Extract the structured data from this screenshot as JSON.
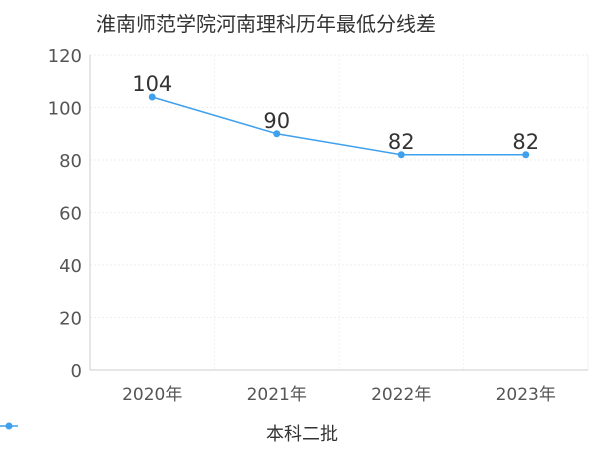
{
  "chart_data": {
    "type": "line",
    "title": "淮南师范学院河南理科历年最低分线差",
    "categories": [
      "2020年",
      "2021年",
      "2022年",
      "2023年"
    ],
    "series": [
      {
        "name": "本科二批",
        "values": [
          104,
          90,
          82,
          82
        ],
        "color": "#3fa0ee"
      }
    ],
    "ylim": [
      0,
      120
    ],
    "yticks": [
      0,
      20,
      40,
      60,
      80,
      100,
      120
    ],
    "grid": true,
    "legend_position": "bottom",
    "show_data_labels": true
  }
}
